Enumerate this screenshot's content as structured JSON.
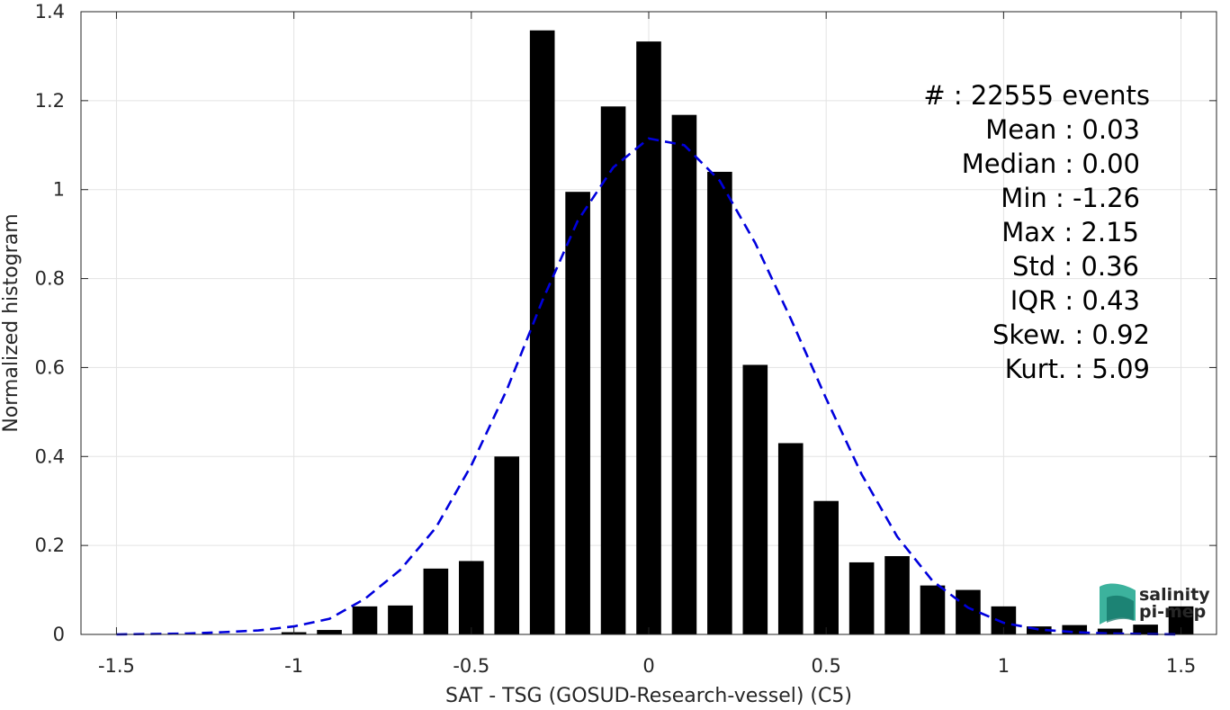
{
  "chart_data": {
    "type": "bar",
    "xlabel": "SAT - TSG (GOSUD-Research-vessel) (C5)",
    "ylabel": "Normalized histogram",
    "xlim": [
      -1.6,
      1.6
    ],
    "ylim": [
      0,
      1.4
    ],
    "grid": true,
    "x_ticks": [
      "-1.5",
      "-1",
      "-0.5",
      "0",
      "0.5",
      "1",
      "1.5"
    ],
    "y_ticks": [
      "0",
      "0.2",
      "0.4",
      "0.6",
      "0.8",
      "1",
      "1.2",
      "1.4"
    ],
    "bar_width": 0.07,
    "bars": {
      "x": [
        -1.5,
        -1.4,
        -1.3,
        -1.2,
        -1.1,
        -1.0,
        -0.9,
        -0.8,
        -0.7,
        -0.6,
        -0.5,
        -0.4,
        -0.3,
        -0.2,
        -0.1,
        0.0,
        0.1,
        0.2,
        0.3,
        0.4,
        0.5,
        0.6,
        0.7,
        0.8,
        0.9,
        1.0,
        1.1,
        1.2,
        1.3,
        1.4,
        1.5
      ],
      "values": [
        0.0,
        0.0,
        0.0,
        0.0,
        0.0,
        0.005,
        0.01,
        0.063,
        0.065,
        0.148,
        0.165,
        0.4,
        1.358,
        0.995,
        1.187,
        1.333,
        1.168,
        1.04,
        0.606,
        0.43,
        0.3,
        0.162,
        0.176,
        0.11,
        0.1,
        0.063,
        0.018,
        0.021,
        0.013,
        0.022,
        0.063
      ],
      "color": "#000000"
    },
    "fit_curve": {
      "style": "dashed",
      "color": "#0000dd",
      "x": [
        -1.5,
        -1.4,
        -1.3,
        -1.2,
        -1.1,
        -1.0,
        -0.9,
        -0.8,
        -0.7,
        -0.6,
        -0.5,
        -0.4,
        -0.3,
        -0.2,
        -0.1,
        0.0,
        0.1,
        0.2,
        0.3,
        0.4,
        0.5,
        0.6,
        0.7,
        0.8,
        0.9,
        1.0,
        1.1,
        1.2,
        1.3,
        1.4,
        1.5
      ],
      "y": [
        0.0,
        0.001,
        0.002,
        0.005,
        0.009,
        0.018,
        0.035,
        0.08,
        0.145,
        0.24,
        0.38,
        0.55,
        0.75,
        0.93,
        1.05,
        1.115,
        1.1,
        1.02,
        0.88,
        0.71,
        0.53,
        0.36,
        0.22,
        0.12,
        0.06,
        0.026,
        0.011,
        0.005,
        0.002,
        0.001,
        0.0
      ]
    },
    "stats": {
      "events": "#  : 22555 events",
      "mean": "Mean : 0.03",
      "median": "Median : 0.00",
      "min": "Min : -1.26",
      "max": "Max : 2.15",
      "std": "Std : 0.36",
      "iqr": "IQR : 0.43",
      "skew": "Skew. : 0.92",
      "kurt": "Kurt. : 5.09"
    },
    "logo": {
      "line1": "salinity",
      "line2": "pi-mep",
      "color": "#1aa58c"
    }
  }
}
